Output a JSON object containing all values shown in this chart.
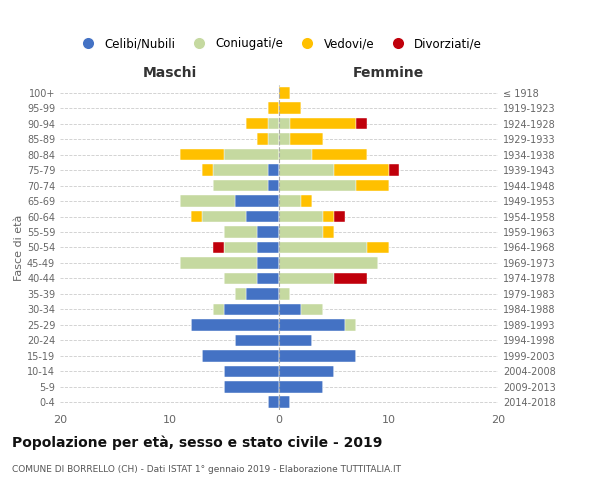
{
  "age_groups": [
    "0-4",
    "5-9",
    "10-14",
    "15-19",
    "20-24",
    "25-29",
    "30-34",
    "35-39",
    "40-44",
    "45-49",
    "50-54",
    "55-59",
    "60-64",
    "65-69",
    "70-74",
    "75-79",
    "80-84",
    "85-89",
    "90-94",
    "95-99",
    "100+"
  ],
  "birth_years": [
    "2014-2018",
    "2009-2013",
    "2004-2008",
    "1999-2003",
    "1994-1998",
    "1989-1993",
    "1984-1988",
    "1979-1983",
    "1974-1978",
    "1969-1973",
    "1964-1968",
    "1959-1963",
    "1954-1958",
    "1949-1953",
    "1944-1948",
    "1939-1943",
    "1934-1938",
    "1929-1933",
    "1924-1928",
    "1919-1923",
    "≤ 1918"
  ],
  "male": {
    "celibi": [
      1,
      5,
      5,
      7,
      4,
      8,
      5,
      3,
      2,
      2,
      2,
      2,
      3,
      4,
      1,
      1,
      0,
      0,
      0,
      0,
      0
    ],
    "coniugati": [
      0,
      0,
      0,
      0,
      0,
      0,
      1,
      1,
      3,
      7,
      3,
      3,
      4,
      5,
      5,
      5,
      5,
      1,
      1,
      0,
      0
    ],
    "vedovi": [
      0,
      0,
      0,
      0,
      0,
      0,
      0,
      0,
      0,
      0,
      0,
      0,
      1,
      0,
      0,
      1,
      4,
      1,
      2,
      1,
      0
    ],
    "divorziati": [
      0,
      0,
      0,
      0,
      0,
      0,
      0,
      0,
      0,
      0,
      1,
      0,
      0,
      0,
      0,
      0,
      0,
      0,
      0,
      0,
      0
    ]
  },
  "female": {
    "nubili": [
      1,
      4,
      5,
      7,
      3,
      6,
      2,
      0,
      0,
      0,
      0,
      0,
      0,
      0,
      0,
      0,
      0,
      0,
      0,
      0,
      0
    ],
    "coniugate": [
      0,
      0,
      0,
      0,
      0,
      1,
      2,
      1,
      5,
      9,
      8,
      4,
      4,
      2,
      7,
      5,
      3,
      1,
      1,
      0,
      0
    ],
    "vedove": [
      0,
      0,
      0,
      0,
      0,
      0,
      0,
      0,
      0,
      0,
      2,
      1,
      1,
      1,
      3,
      5,
      5,
      3,
      6,
      2,
      1
    ],
    "divorziate": [
      0,
      0,
      0,
      0,
      0,
      0,
      0,
      0,
      3,
      0,
      0,
      0,
      1,
      0,
      0,
      1,
      0,
      0,
      1,
      0,
      0
    ]
  },
  "colors": {
    "celibi": "#4472c4",
    "coniugati": "#c5d9a0",
    "vedovi": "#ffc000",
    "divorziati": "#c0000b"
  },
  "title": "Popolazione per età, sesso e stato civile - 2019",
  "subtitle": "COMUNE DI BORRELLO (CH) - Dati ISTAT 1° gennaio 2019 - Elaborazione TUTTITALIA.IT",
  "xlabel_left": "Maschi",
  "xlabel_right": "Femmine",
  "ylabel_left": "Fasce di età",
  "xlim": 20,
  "legend_labels": [
    "Celibi/Nubili",
    "Coniugati/e",
    "Vedovi/e",
    "Divorziati/e"
  ],
  "bg_color": "#ffffff",
  "plot_bg_color": "#ffffff",
  "grid_color": "#cccccc",
  "bar_height": 0.75,
  "figsize": [
    6.0,
    5.0
  ],
  "dpi": 100
}
